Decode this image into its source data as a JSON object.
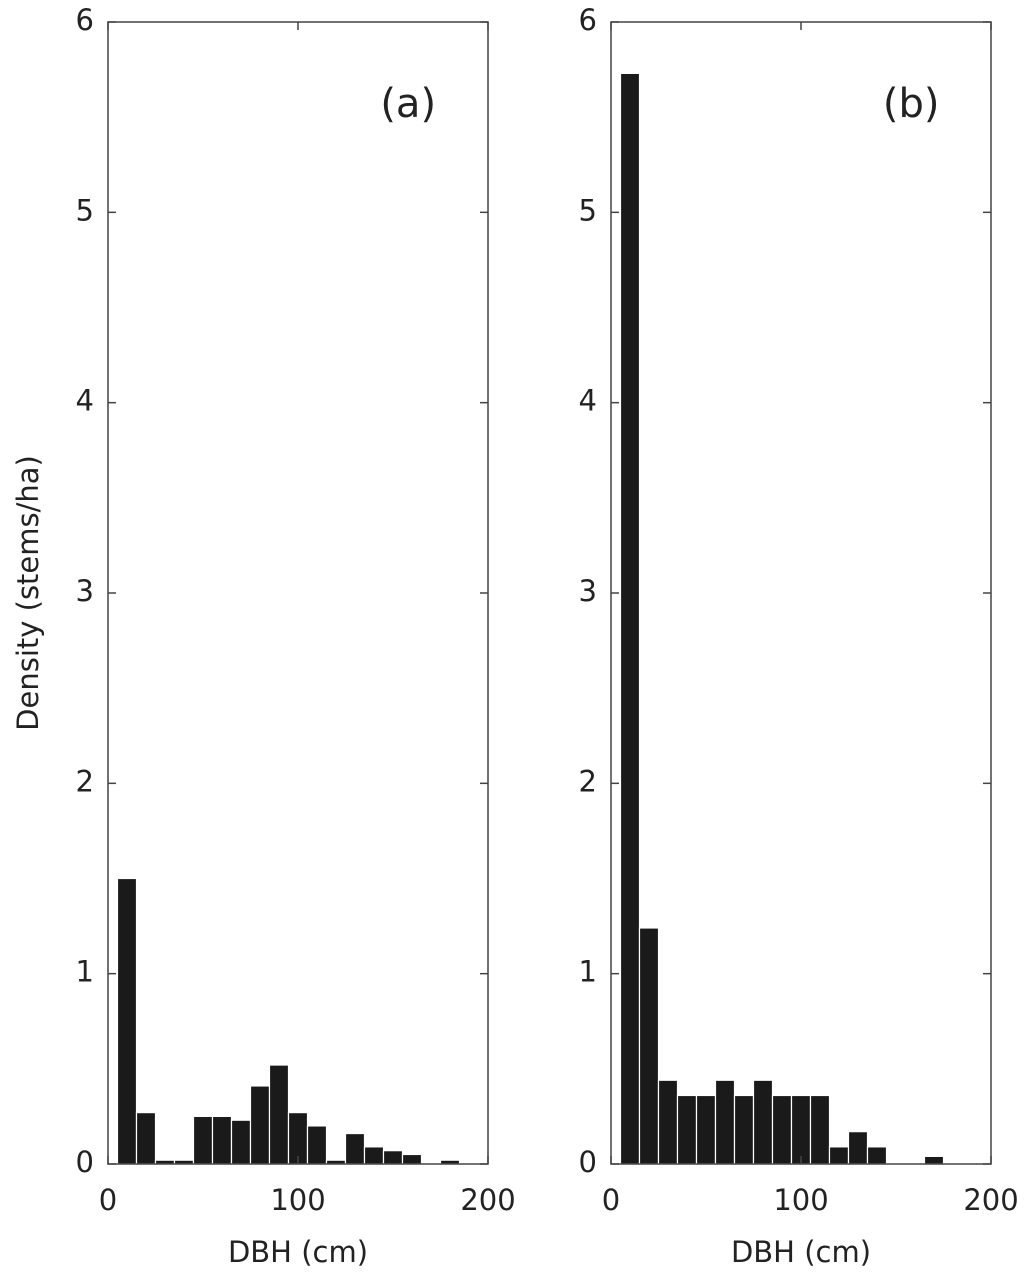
{
  "chart_data": [
    {
      "type": "histogram",
      "annotation": "(a)",
      "xlabel": "DBH (cm)",
      "ylabel": "Density (stems/ha)",
      "bins": [
        5,
        15,
        25,
        35,
        45,
        55,
        65,
        75,
        85,
        95,
        105,
        115,
        125,
        135,
        145,
        155,
        165,
        175,
        185,
        195
      ],
      "values": [
        1.5,
        0.27,
        0.02,
        0.02,
        0.25,
        0.25,
        0.23,
        0.41,
        0.52,
        0.27,
        0.2,
        0.02,
        0.16,
        0.09,
        0.07,
        0.05,
        0,
        0.02,
        0
      ],
      "color": "#1a1a1a",
      "xlim": [
        0,
        200
      ],
      "ylim": [
        0,
        6
      ],
      "xticks": [
        0,
        100,
        200
      ],
      "yticks": [
        0,
        1,
        2,
        3,
        4,
        5,
        6
      ]
    },
    {
      "type": "histogram",
      "annotation": "(b)",
      "xlabel": "DBH (cm)",
      "bins": [
        5,
        15,
        25,
        35,
        45,
        55,
        65,
        75,
        85,
        95,
        105,
        115,
        125,
        135,
        145,
        155,
        165,
        175,
        185,
        195
      ],
      "values": [
        5.73,
        1.24,
        0.44,
        0.36,
        0.36,
        0.44,
        0.36,
        0.44,
        0.36,
        0.36,
        0.36,
        0.09,
        0.17,
        0.09,
        0,
        0,
        0.04,
        0,
        0
      ],
      "color": "#1a1a1a",
      "xlim": [
        0,
        200
      ],
      "ylim": [
        0,
        6
      ],
      "xticks": [
        0,
        100,
        200
      ],
      "yticks": [
        0,
        1,
        2,
        3,
        4,
        5,
        6
      ]
    }
  ]
}
